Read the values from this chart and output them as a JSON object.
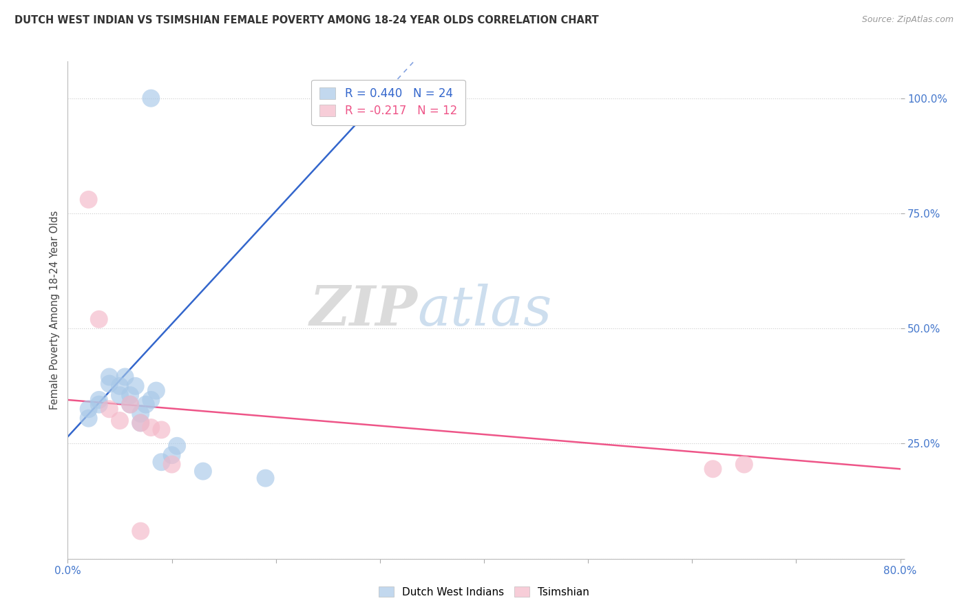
{
  "title": "DUTCH WEST INDIAN VS TSIMSHIAN FEMALE POVERTY AMONG 18-24 YEAR OLDS CORRELATION CHART",
  "source": "Source: ZipAtlas.com",
  "ylabel": "Female Poverty Among 18-24 Year Olds",
  "xlim": [
    0.0,
    0.8
  ],
  "ylim": [
    0.0,
    1.08
  ],
  "blue_R": 0.44,
  "blue_N": 24,
  "pink_R": -0.217,
  "pink_N": 12,
  "blue_color": "#a8c8e8",
  "pink_color": "#f4b8c8",
  "blue_line_color": "#3366cc",
  "pink_line_color": "#ee5588",
  "blue_x": [
    0.08,
    0.3,
    0.02,
    0.02,
    0.03,
    0.03,
    0.04,
    0.04,
    0.05,
    0.05,
    0.055,
    0.06,
    0.06,
    0.065,
    0.07,
    0.07,
    0.075,
    0.08,
    0.085,
    0.09,
    0.1,
    0.105,
    0.13,
    0.19
  ],
  "blue_y": [
    1.0,
    1.0,
    0.305,
    0.325,
    0.335,
    0.345,
    0.38,
    0.395,
    0.355,
    0.375,
    0.395,
    0.335,
    0.355,
    0.375,
    0.295,
    0.315,
    0.335,
    0.345,
    0.365,
    0.21,
    0.225,
    0.245,
    0.19,
    0.175
  ],
  "pink_x": [
    0.02,
    0.03,
    0.04,
    0.05,
    0.06,
    0.07,
    0.08,
    0.09,
    0.1,
    0.62,
    0.65,
    0.07
  ],
  "pink_y": [
    0.78,
    0.52,
    0.325,
    0.3,
    0.335,
    0.295,
    0.285,
    0.28,
    0.205,
    0.195,
    0.205,
    0.06
  ],
  "blue_line_x0": 0.0,
  "blue_line_x_solid_end": 0.305,
  "blue_line_x_dash_end": 0.6,
  "blue_line_y0": 0.265,
  "blue_line_slope": 2.45,
  "pink_line_x0": 0.0,
  "pink_line_x1": 0.8,
  "pink_line_y0": 0.345,
  "pink_line_y1": 0.195,
  "watermark_zip": "ZIP",
  "watermark_atlas": "atlas",
  "background_color": "#ffffff",
  "grid_color": "#cccccc",
  "tick_color": "#4477cc",
  "title_color": "#333333",
  "source_color": "#999999"
}
